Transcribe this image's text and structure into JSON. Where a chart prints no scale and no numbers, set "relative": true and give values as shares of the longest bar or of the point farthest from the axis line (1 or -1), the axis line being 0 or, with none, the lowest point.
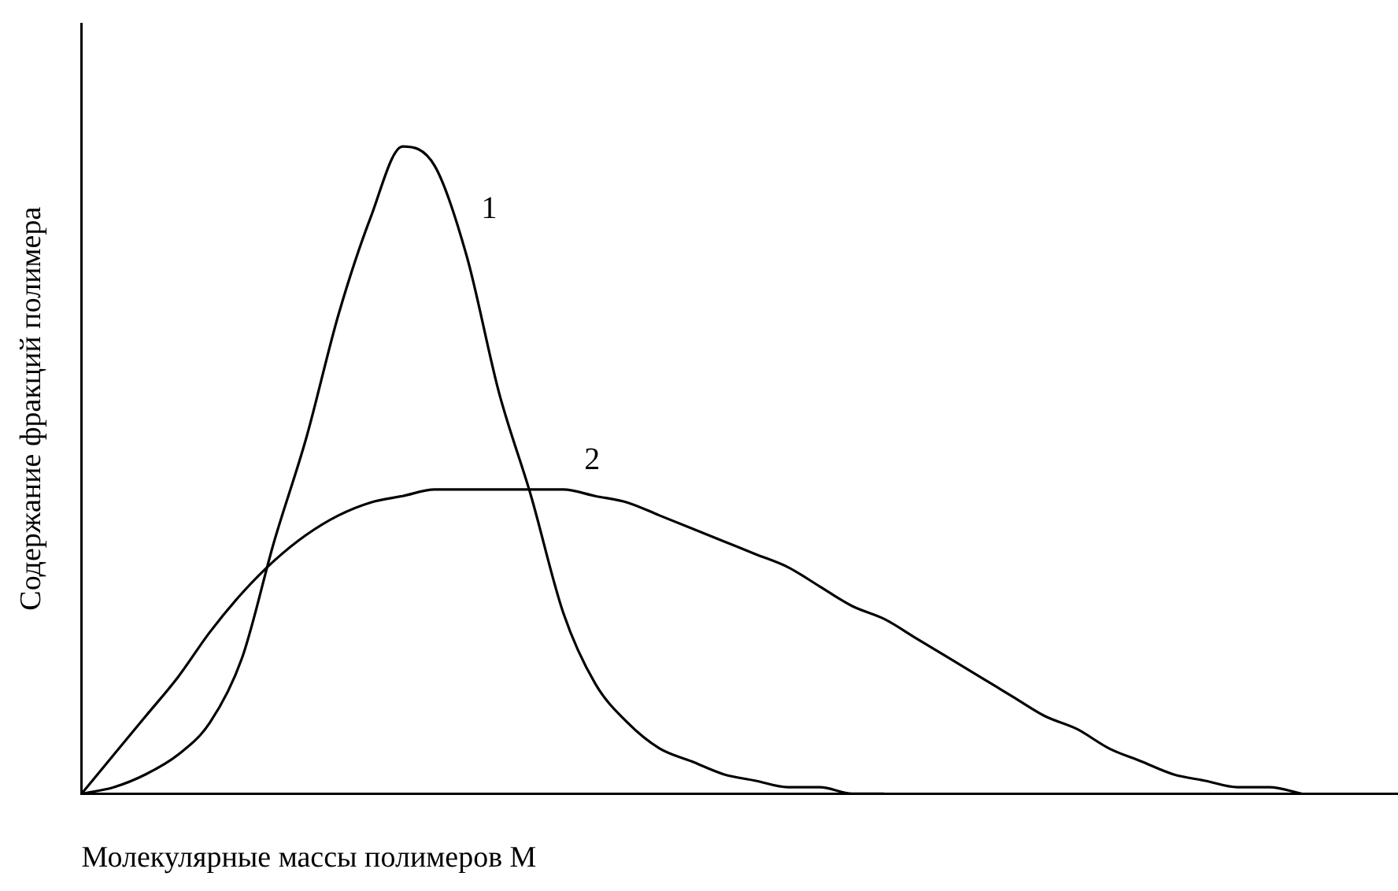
{
  "chart_data": {
    "type": "line",
    "xlabel": "Молекулярные массы полимеров М",
    "ylabel": "Содержание фракций полимера",
    "relative": true,
    "legend": false,
    "grid": false,
    "tick_labels": false,
    "categories": [
      null,
      null,
      null,
      null,
      null,
      null,
      null,
      null,
      null,
      null,
      null,
      null,
      null,
      null,
      null,
      null,
      null,
      null,
      null,
      null,
      null,
      null,
      null,
      null,
      null,
      null,
      null,
      null,
      null,
      null,
      null,
      null,
      null,
      null,
      null,
      null,
      null,
      null,
      null,
      null,
      null,
      null
    ],
    "series": [
      {
        "name": "1",
        "color": "#000000",
        "values": [
          0,
          0.01,
          0.03,
          0.06,
          0.11,
          0.21,
          0.39,
          0.55,
          0.74,
          0.89,
          1,
          0.97,
          0.83,
          0.62,
          0.46,
          0.28,
          0.17,
          0.11,
          0.07,
          0.05,
          0.03,
          0.02,
          0.01,
          0.01,
          0,
          0,
          null,
          null,
          null,
          null,
          null,
          null,
          null,
          null,
          null,
          null,
          null,
          null,
          null,
          null,
          null,
          null
        ]
      },
      {
        "name": "2",
        "color": "#000000",
        "values": [
          0,
          0.06,
          0.12,
          0.18,
          0.25,
          0.31,
          0.36,
          0.4,
          0.43,
          0.45,
          0.46,
          0.47,
          0.47,
          0.47,
          0.47,
          0.47,
          0.46,
          0.45,
          0.43,
          0.41,
          0.39,
          0.37,
          0.35,
          0.32,
          0.29,
          0.27,
          0.24,
          0.21,
          0.18,
          0.15,
          0.12,
          0.1,
          0.07,
          0.05,
          0.03,
          0.02,
          0.01,
          0.01,
          0,
          null,
          null,
          null
        ]
      }
    ]
  }
}
